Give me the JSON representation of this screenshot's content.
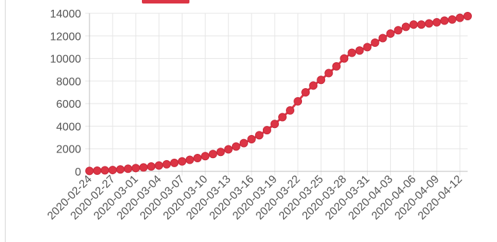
{
  "chart_data": {
    "type": "line",
    "title": "",
    "xlabel": "",
    "ylabel": "",
    "ylim": [
      0,
      14000
    ],
    "grid": true,
    "legend": "top",
    "colors": {
      "series": "#dc3545",
      "grid": "#e5e5e5",
      "axis": "#bdbdbd",
      "text": "#555555"
    },
    "y_ticks": [
      0,
      2000,
      4000,
      6000,
      8000,
      10000,
      12000,
      14000
    ],
    "y_tick_labels": [
      "0",
      "2000",
      "4000",
      "6000",
      "8000",
      "10000",
      "12000",
      "14000"
    ],
    "x_tick_labels": [
      "2020-02-24",
      "2020-02-27",
      "2020-03-01",
      "2020-03-04",
      "2020-03-07",
      "2020-03-10",
      "2020-03-13",
      "2020-03-16",
      "2020-03-19",
      "2020-03-22",
      "2020-03-25",
      "2020-03-28",
      "2020-03-31",
      "2020-04-03",
      "2020-04-06",
      "2020-04-09",
      "2020-04-12"
    ],
    "x": [
      "2020-02-24",
      "2020-02-25",
      "2020-02-26",
      "2020-02-27",
      "2020-02-28",
      "2020-02-29",
      "2020-03-01",
      "2020-03-02",
      "2020-03-03",
      "2020-03-04",
      "2020-03-05",
      "2020-03-06",
      "2020-03-07",
      "2020-03-08",
      "2020-03-09",
      "2020-03-10",
      "2020-03-11",
      "2020-03-12",
      "2020-03-13",
      "2020-03-14",
      "2020-03-15",
      "2020-03-16",
      "2020-03-17",
      "2020-03-18",
      "2020-03-19",
      "2020-03-20",
      "2020-03-21",
      "2020-03-22",
      "2020-03-23",
      "2020-03-24",
      "2020-03-25",
      "2020-03-26",
      "2020-03-27",
      "2020-03-28",
      "2020-03-29",
      "2020-03-30",
      "2020-03-31",
      "2020-04-01",
      "2020-04-02",
      "2020-04-03",
      "2020-04-04",
      "2020-04-05",
      "2020-04-06",
      "2020-04-07",
      "2020-04-08",
      "2020-04-09",
      "2020-04-10",
      "2020-04-11",
      "2020-04-12",
      "2020-04-13"
    ],
    "series": [
      {
        "values": [
          40,
          60,
          90,
          120,
          170,
          230,
          290,
          350,
          430,
          520,
          630,
          750,
          880,
          1020,
          1180,
          1350,
          1530,
          1720,
          1950,
          2200,
          2500,
          2850,
          3200,
          3650,
          4200,
          4800,
          5400,
          6200,
          7000,
          7600,
          8100,
          8700,
          9300,
          10000,
          10500,
          10700,
          11000,
          11400,
          11800,
          12200,
          12500,
          12800,
          13000,
          13000,
          13100,
          13200,
          13350,
          13450,
          13600,
          13750
        ]
      }
    ]
  }
}
